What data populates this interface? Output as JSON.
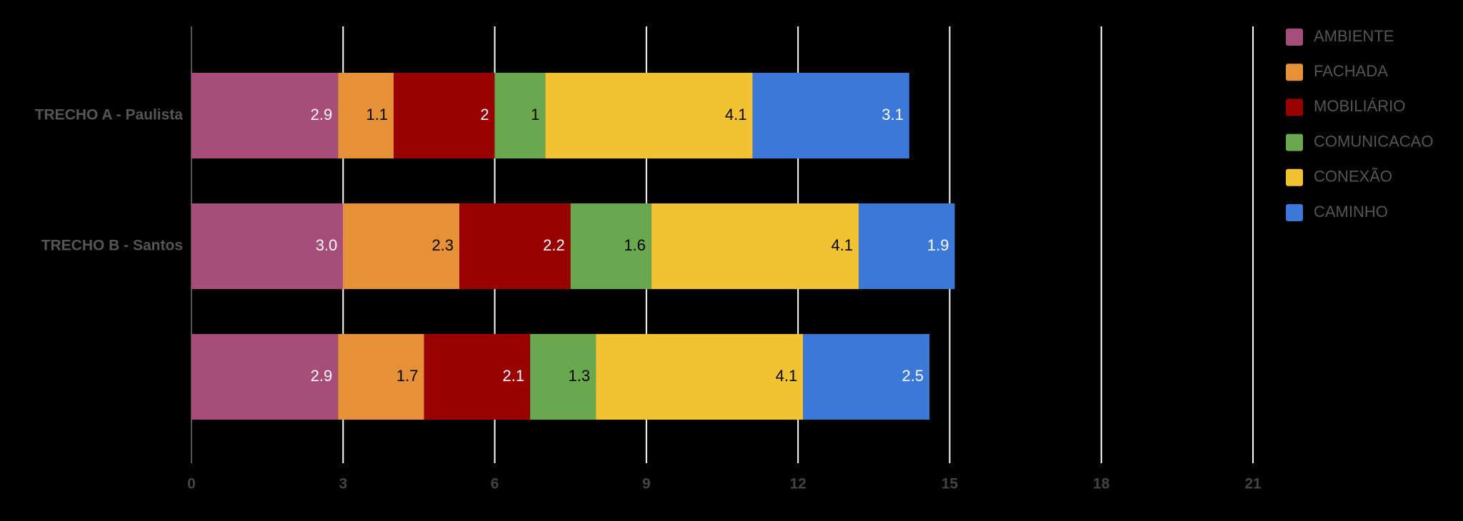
{
  "chart_data": {
    "type": "stacked-bar-horizontal",
    "categories": [
      "TRECHO A - Paulista",
      "TRECHO B - Santos",
      null
    ],
    "series": [
      {
        "name": "AMBIENTE",
        "color": "#a64d79",
        "values": [
          2.9,
          3.0,
          2.9
        ],
        "value_labels": [
          "2.9",
          "3.0",
          "2.9"
        ]
      },
      {
        "name": "FACHADA",
        "color": "#e69138",
        "values": [
          1.1,
          2.3,
          1.7
        ]
      },
      {
        "name": "MOBILIÁRIO",
        "color": "#990000",
        "values": [
          2,
          2.2,
          2.1
        ]
      },
      {
        "name": "COMUNICACAO",
        "color": "#6aa84f",
        "values": [
          1,
          1.6,
          1.3
        ]
      },
      {
        "name": "CONEXÃO",
        "color": "#f1c232",
        "values": [
          4.1,
          4.1,
          4.1
        ]
      },
      {
        "name": "CAMINHO",
        "color": "#3c78d8",
        "values": [
          3.1,
          1.9,
          2.5
        ]
      }
    ],
    "xlim": [
      0,
      21
    ],
    "xticks": [
      0,
      3,
      6,
      9,
      12,
      15,
      18,
      21
    ],
    "grid": true,
    "legend": "right"
  }
}
